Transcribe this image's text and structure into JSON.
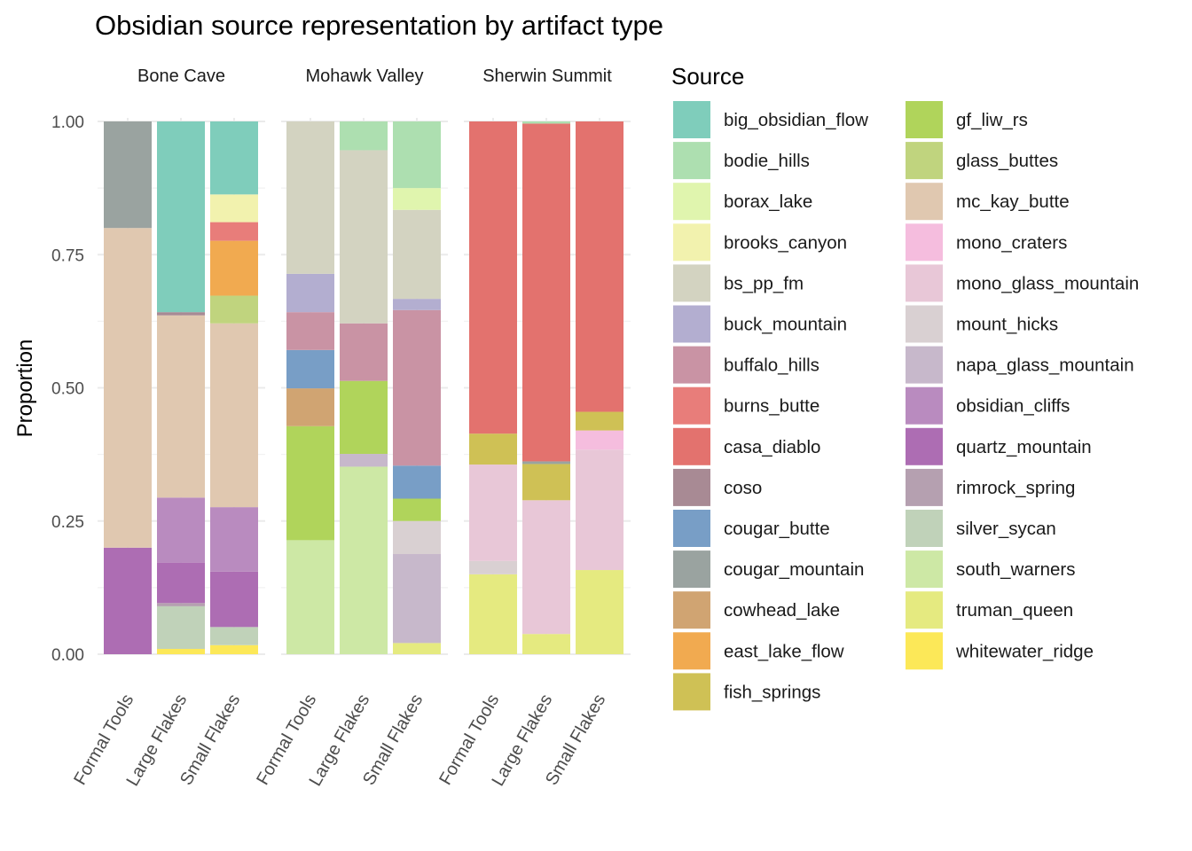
{
  "chart_data": {
    "type": "bar",
    "stacked": true,
    "title": "Obsidian source representation by artifact type",
    "ylabel": "Proportion",
    "xlabel": "",
    "ylim": [
      0,
      1
    ],
    "yticks": [
      "0.00",
      "0.25",
      "0.50",
      "0.75",
      "1.00"
    ],
    "ytick_values": [
      0,
      0.25,
      0.5,
      0.75,
      1
    ],
    "grid": true,
    "legend": {
      "title": "Source",
      "placement": "right",
      "columns": 2
    },
    "categories": [
      "Formal Tools",
      "Large Flakes",
      "Small Flakes"
    ],
    "sources": [
      {
        "name": "big_obsidian_flow",
        "color": "#7fcdbb"
      },
      {
        "name": "bodie_hills",
        "color": "#addfb0"
      },
      {
        "name": "borax_lake",
        "color": "#e0f5ae"
      },
      {
        "name": "brooks_canyon",
        "color": "#f2f2ae"
      },
      {
        "name": "bs_pp_fm",
        "color": "#d3d3c1"
      },
      {
        "name": "buck_mountain",
        "color": "#b3aed0"
      },
      {
        "name": "buffalo_hills",
        "color": "#c993a4"
      },
      {
        "name": "burns_butte",
        "color": "#e87d7a"
      },
      {
        "name": "casa_diablo",
        "color": "#e3726e"
      },
      {
        "name": "coso",
        "color": "#a88a94"
      },
      {
        "name": "cougar_butte",
        "color": "#789ec6"
      },
      {
        "name": "cougar_mountain",
        "color": "#9aa3a0"
      },
      {
        "name": "cowhead_lake",
        "color": "#d0a472"
      },
      {
        "name": "east_lake_flow",
        "color": "#f1aa50"
      },
      {
        "name": "fish_springs",
        "color": "#cfc155"
      },
      {
        "name": "gf_liw_rs",
        "color": "#b0d45b"
      },
      {
        "name": "glass_buttes",
        "color": "#c0d47e"
      },
      {
        "name": "mc_kay_butte",
        "color": "#e0c8b0"
      },
      {
        "name": "mono_craters",
        "color": "#f5bdde"
      },
      {
        "name": "mono_glass_mountain",
        "color": "#e8c7d7"
      },
      {
        "name": "mount_hicks",
        "color": "#d9d0d2"
      },
      {
        "name": "napa_glass_mountain",
        "color": "#c7b8cb"
      },
      {
        "name": "obsidian_cliffs",
        "color": "#b98bbf"
      },
      {
        "name": "quartz_mountain",
        "color": "#ad6db3"
      },
      {
        "name": "rimrock_spring",
        "color": "#b5a0b0"
      },
      {
        "name": "silver_sycan",
        "color": "#c0d2b9"
      },
      {
        "name": "south_warners",
        "color": "#cde8a5"
      },
      {
        "name": "truman_queen",
        "color": "#e5ea80"
      },
      {
        "name": "whitewater_ridge",
        "color": "#fce858"
      }
    ],
    "stack_order_bottom_to_top": [
      "whitewater_ridge",
      "truman_queen",
      "south_warners",
      "silver_sycan",
      "rimrock_spring",
      "quartz_mountain",
      "obsidian_cliffs",
      "napa_glass_mountain",
      "mount_hicks",
      "mono_glass_mountain",
      "mono_craters",
      "mc_kay_butte",
      "glass_buttes",
      "gf_liw_rs",
      "fish_springs",
      "east_lake_flow",
      "cowhead_lake",
      "cougar_mountain",
      "cougar_butte",
      "coso",
      "casa_diablo",
      "burns_butte",
      "buffalo_hills",
      "buck_mountain",
      "bs_pp_fm",
      "brooks_canyon",
      "borax_lake",
      "bodie_hills",
      "big_obsidian_flow"
    ],
    "facets": [
      {
        "name": "Bone Cave",
        "bars": [
          {
            "category": "Formal Tools",
            "values": {
              "quartz_mountain": 0.2,
              "mc_kay_butte": 0.6,
              "cougar_mountain": 0.2
            }
          },
          {
            "category": "Large Flakes",
            "values": {
              "whitewater_ridge": 0.01,
              "silver_sycan": 0.08,
              "rimrock_spring": 0.006,
              "quartz_mountain": 0.076,
              "obsidian_cliffs": 0.122,
              "mc_kay_butte": 0.342,
              "coso": 0.006,
              "big_obsidian_flow": 0.358
            }
          },
          {
            "category": "Small Flakes",
            "values": {
              "whitewater_ridge": 0.017,
              "silver_sycan": 0.034,
              "quartz_mountain": 0.104,
              "obsidian_cliffs": 0.121,
              "mc_kay_butte": 0.345,
              "glass_buttes": 0.052,
              "east_lake_flow": 0.103,
              "burns_butte": 0.035,
              "brooks_canyon": 0.052,
              "big_obsidian_flow": 0.137
            }
          }
        ]
      },
      {
        "name": "Mohawk Valley",
        "bars": [
          {
            "category": "Formal Tools",
            "values": {
              "south_warners": 0.214,
              "gf_liw_rs": 0.214,
              "cowhead_lake": 0.071,
              "cougar_butte": 0.072,
              "buffalo_hills": 0.071,
              "buck_mountain": 0.072,
              "bs_pp_fm": 0.286
            }
          },
          {
            "category": "Large Flakes",
            "values": {
              "south_warners": 0.352,
              "napa_glass_mountain": 0.024,
              "gf_liw_rs": 0.137,
              "buffalo_hills": 0.108,
              "bs_pp_fm": 0.325,
              "bodie_hills": 0.054
            }
          },
          {
            "category": "Small Flakes",
            "values": {
              "truman_queen": 0.021,
              "napa_glass_mountain": 0.167,
              "mount_hicks": 0.062,
              "gf_liw_rs": 0.042,
              "cougar_butte": 0.062,
              "buffalo_hills": 0.292,
              "buck_mountain": 0.021,
              "bs_pp_fm": 0.167,
              "borax_lake": 0.041,
              "bodie_hills": 0.125
            }
          }
        ]
      },
      {
        "name": "Sherwin Summit",
        "bars": [
          {
            "category": "Formal Tools",
            "values": {
              "truman_queen": 0.15,
              "mount_hicks": 0.025,
              "mono_glass_mountain": 0.181,
              "fish_springs": 0.058,
              "casa_diablo": 0.586
            }
          },
          {
            "category": "Large Flakes",
            "values": {
              "truman_queen": 0.038,
              "mono_glass_mountain": 0.251,
              "fish_springs": 0.068,
              "cougar_mountain": 0.005,
              "casa_diablo": 0.634,
              "bodie_hills": 0.004
            }
          },
          {
            "category": "Small Flakes",
            "values": {
              "truman_queen": 0.158,
              "mono_glass_mountain": 0.226,
              "mono_craters": 0.036,
              "fish_springs": 0.035,
              "casa_diablo": 0.545
            }
          }
        ]
      }
    ]
  }
}
